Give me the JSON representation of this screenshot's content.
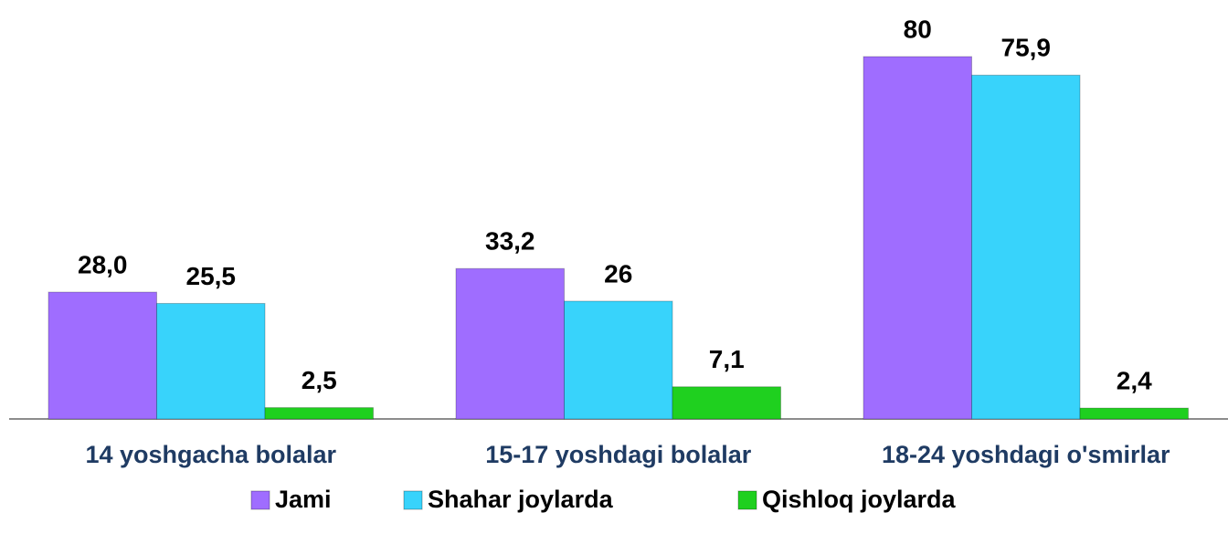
{
  "chart_data": {
    "type": "bar",
    "categories": [
      "14 yoshgacha bolalar",
      "15-17 yoshdagi bolalar",
      "18-24 yoshdagi o'smirlar"
    ],
    "series": [
      {
        "name": "Jami",
        "color": "#9f6dff",
        "values": [
          28,
          33.2,
          80
        ],
        "value_labels": [
          "28,0",
          "33,2",
          "80"
        ]
      },
      {
        "name": "Shahar joylarda",
        "color": "#38d3fb",
        "values": [
          25.5,
          26,
          75.9
        ],
        "value_labels": [
          "25,5",
          "26",
          "75,9"
        ]
      },
      {
        "name": "Qishloq joylarda",
        "color": "#1fd01f",
        "values": [
          2.5,
          7.1,
          2.4
        ],
        "value_labels": [
          "2,5",
          "7,1",
          "2,4"
        ]
      }
    ],
    "legend": "bottom"
  }
}
